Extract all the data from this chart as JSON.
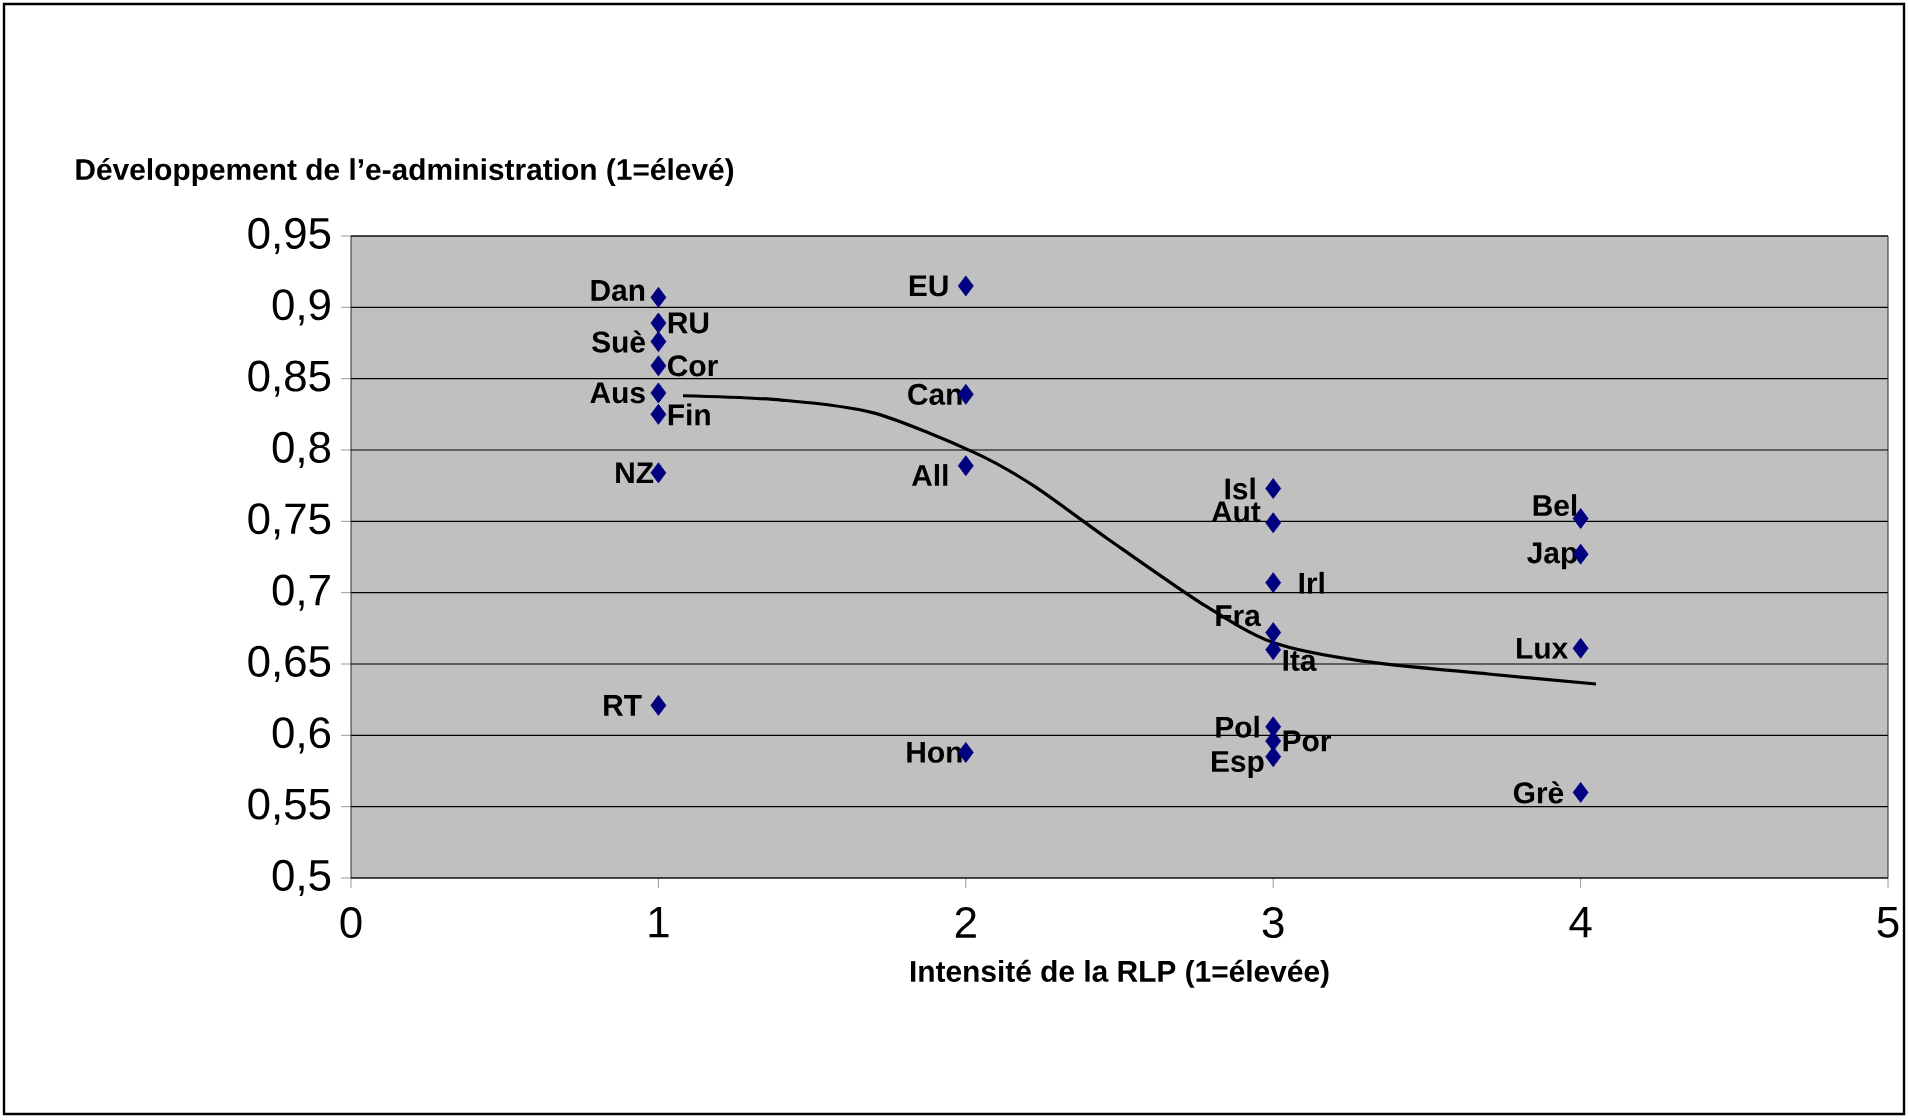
{
  "chart_data": {
    "type": "scatter",
    "xlabel": "Intensité de la RLP (1=élevée)",
    "ylabel": "Développement de l’e-administration (1=élevé)",
    "xlim": [
      0,
      5
    ],
    "xticks": [
      0,
      1,
      2,
      3,
      4,
      5
    ],
    "ylim": [
      0.5,
      0.95
    ],
    "yticks": [
      {
        "value": 0.5,
        "label": "0,5"
      },
      {
        "value": 0.55,
        "label": "0,55"
      },
      {
        "value": 0.6,
        "label": "0,6"
      },
      {
        "value": 0.65,
        "label": "0,65"
      },
      {
        "value": 0.7,
        "label": "0,7"
      },
      {
        "value": 0.75,
        "label": "0,75"
      },
      {
        "value": 0.8,
        "label": "0,8"
      },
      {
        "value": 0.85,
        "label": "0,85"
      },
      {
        "value": 0.9,
        "label": "0,9"
      },
      {
        "value": 0.95,
        "label": "0,95"
      }
    ],
    "grid": "y",
    "marker": "diamond",
    "series": [
      {
        "color": "#000080",
        "x": [
          1,
          1,
          1,
          1,
          1,
          1,
          1,
          1,
          2,
          2,
          2,
          2,
          3,
          3,
          3,
          3,
          3,
          3,
          3,
          3,
          4,
          4,
          4,
          4
        ],
        "values": [
          0.907,
          0.889,
          0.876,
          0.859,
          0.84,
          0.825,
          0.784,
          0.621,
          0.915,
          0.839,
          0.789,
          0.588,
          0.773,
          0.749,
          0.707,
          0.672,
          0.66,
          0.606,
          0.596,
          0.585,
          0.752,
          0.727,
          0.661,
          0.56
        ]
      },
      {
        "type": "line",
        "color": "#000000",
        "marker": "none",
        "x": [
          1.08,
          1.4,
          1.7,
          2.03,
          2.22,
          2.46,
          2.77,
          3.0,
          3.29,
          3.7,
          4.05
        ],
        "values": [
          0.838,
          0.835,
          0.826,
          0.798,
          0.775,
          0.738,
          0.692,
          0.665,
          0.652,
          0.643,
          0.636
        ]
      }
    ],
    "annotations": [
      {
        "text": "Dan",
        "x": 1,
        "y": 0.907
      },
      {
        "text": "RU",
        "x": 1,
        "y": 0.889
      },
      {
        "text": "Suè",
        "x": 1,
        "y": 0.876
      },
      {
        "text": "Cor",
        "x": 1,
        "y": 0.859
      },
      {
        "text": "Aus",
        "x": 1,
        "y": 0.84
      },
      {
        "text": "Fin",
        "x": 1,
        "y": 0.825
      },
      {
        "text": "NZ",
        "x": 1,
        "y": 0.784
      },
      {
        "text": "RT",
        "x": 1,
        "y": 0.621
      },
      {
        "text": "EU",
        "x": 2,
        "y": 0.915
      },
      {
        "text": "Can",
        "x": 2,
        "y": 0.839
      },
      {
        "text": "All",
        "x": 2,
        "y": 0.789
      },
      {
        "text": "Hon",
        "x": 2,
        "y": 0.588
      },
      {
        "text": "Isl",
        "x": 3,
        "y": 0.773
      },
      {
        "text": "Aut",
        "x": 3,
        "y": 0.749
      },
      {
        "text": "Irl",
        "x": 3,
        "y": 0.707
      },
      {
        "text": "Fra",
        "x": 3,
        "y": 0.672
      },
      {
        "text": "Ita",
        "x": 3,
        "y": 0.66
      },
      {
        "text": "Pol",
        "x": 3,
        "y": 0.606
      },
      {
        "text": "Por",
        "x": 3,
        "y": 0.596
      },
      {
        "text": "Esp",
        "x": 3,
        "y": 0.585
      },
      {
        "text": "Bel",
        "x": 4,
        "y": 0.752
      },
      {
        "text": "Jap",
        "x": 4,
        "y": 0.727
      },
      {
        "text": "Lux",
        "x": 4,
        "y": 0.661
      },
      {
        "text": "Grè",
        "x": 4,
        "y": 0.56
      }
    ]
  }
}
